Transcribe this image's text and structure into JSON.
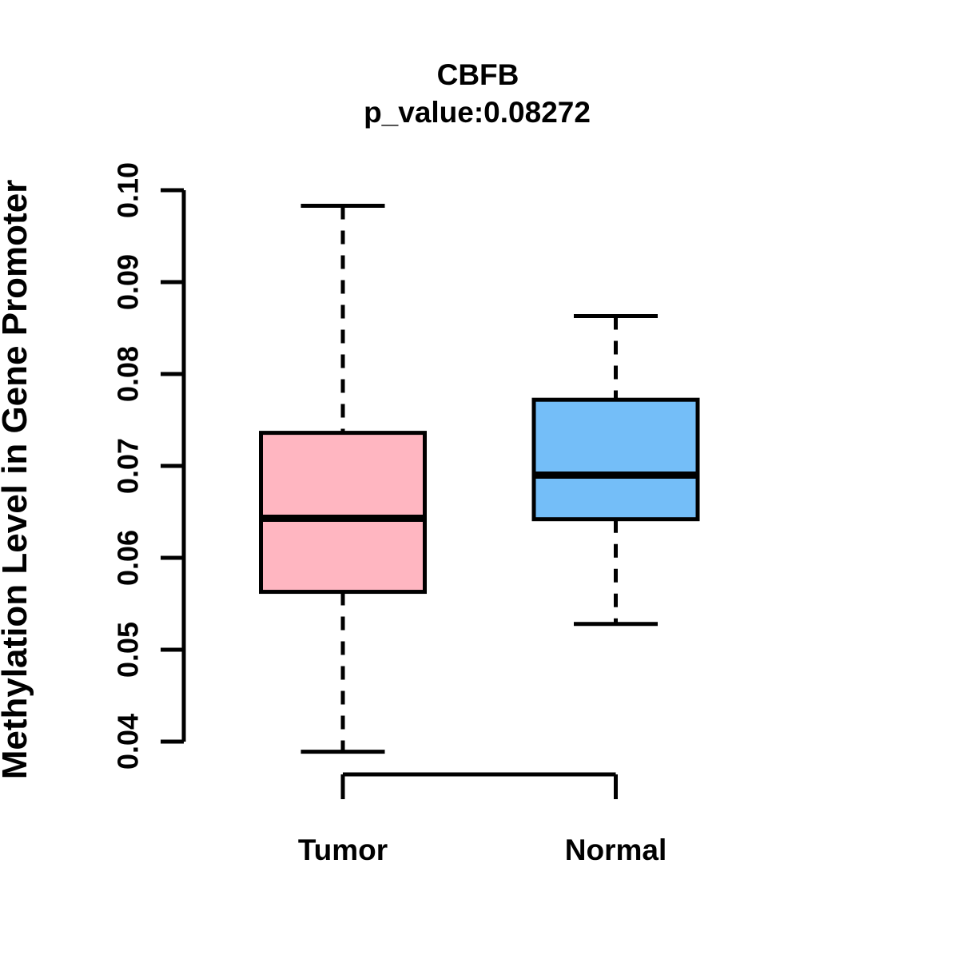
{
  "chart_data": {
    "type": "boxplot",
    "title": "CBFB",
    "subtitle": "p_value:0.08272",
    "ylabel": "Methylation Level in Gene Promoter",
    "xlabel": "",
    "categories": [
      "Tumor",
      "Normal"
    ],
    "ylim": [
      0.04,
      0.1
    ],
    "yticks": [
      0.04,
      0.05,
      0.06,
      0.07,
      0.08,
      0.09,
      0.1
    ],
    "ytick_labels": [
      "0.04",
      "0.05",
      "0.06",
      "0.07",
      "0.08",
      "0.09",
      "0.10"
    ],
    "grid": false,
    "legend": false,
    "colors": {
      "tumor_fill": "#FFB6C1",
      "normal_fill": "#74BEF8",
      "stroke": "#000000",
      "background": "#FFFFFF"
    },
    "series": [
      {
        "name": "Tumor",
        "fill": "#FFB6C1",
        "whisker_low": 0.0389,
        "q1": 0.0563,
        "median": 0.0643,
        "q3": 0.0736,
        "whisker_high": 0.0983
      },
      {
        "name": "Normal",
        "fill": "#74BEF8",
        "whisker_low": 0.0528,
        "q1": 0.0642,
        "median": 0.069,
        "q3": 0.0772,
        "whisker_high": 0.0863
      }
    ]
  }
}
